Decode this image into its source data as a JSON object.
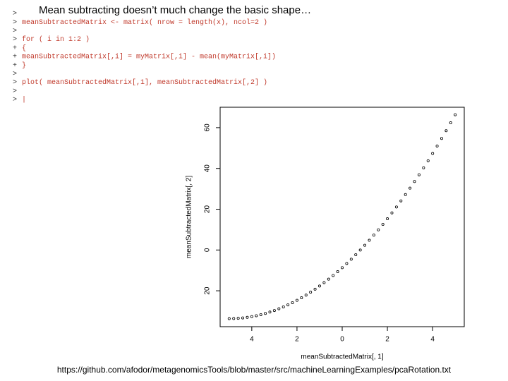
{
  "slide_title": "Mean subtracting doesn’t much change the basic shape…",
  "console": [
    {
      "prompt": ">",
      "code": ""
    },
    {
      "prompt": ">",
      "code": "meanSubtractedMatrix <- matrix( nrow = length(x), ncol=2 )"
    },
    {
      "prompt": ">",
      "code": ""
    },
    {
      "prompt": ">",
      "code": "for ( i in 1:2 )"
    },
    {
      "prompt": "+",
      "code": "{"
    },
    {
      "prompt": "+",
      "code": "meanSubtractedMatrix[,i] = myMatrix[,i] - mean(myMatrix[,i])"
    },
    {
      "prompt": "+",
      "code": "}"
    },
    {
      "prompt": ">",
      "code": ""
    },
    {
      "prompt": ">",
      "code": "plot( meanSubtractedMatrix[,1], meanSubtractedMatrix[,2] )"
    },
    {
      "prompt": ">",
      "code": ""
    },
    {
      "prompt": ">",
      "code": "|"
    }
  ],
  "footer": "https://github.com/afodor/metagenomicsTools/blob/master/src/machineLearningExamples/pcaRotation.txt",
  "chart_data": {
    "type": "scatter",
    "x_label": "meanSubtractedMatrix[, 1]",
    "y_label": "meanSubtractedMatrix[, 2]",
    "color": "#000000",
    "xlim": [
      -5.4,
      5.4
    ],
    "ylim": [
      -37.6,
      70
    ],
    "xticks": [
      {
        "value": -4,
        "label": "4"
      },
      {
        "value": -2,
        "label": "2"
      },
      0,
      2,
      4
    ],
    "yticks": [
      {
        "value": -20,
        "label": "20"
      },
      0,
      20,
      40,
      60
    ],
    "x": [
      -5,
      -4.8,
      -4.6,
      -4.4,
      -4.2,
      -4,
      -3.8,
      -3.6,
      -3.4,
      -3.2,
      -3,
      -2.8,
      -2.6,
      -2.4,
      -2.2,
      -2,
      -1.8,
      -1.6,
      -1.4,
      -1.2,
      -1,
      -0.8,
      -0.6,
      -0.4,
      -0.2,
      0,
      0.2,
      0.4,
      0.6,
      0.8,
      1,
      1.2,
      1.4,
      1.6,
      1.8,
      2,
      2.2,
      2.4,
      2.6,
      2.8,
      3,
      3.2,
      3.4,
      3.6,
      3.8,
      4,
      4.2,
      4.4,
      4.6,
      4.8,
      5
    ],
    "values": [
      -33.67,
      -33.63,
      -33.51,
      -33.31,
      -33.03,
      -32.67,
      -32.23,
      -31.71,
      -31.11,
      -30.43,
      -29.67,
      -28.83,
      -27.91,
      -26.91,
      -25.83,
      -24.67,
      -23.43,
      -22.11,
      -20.71,
      -19.23,
      -17.67,
      -16.03,
      -14.31,
      -12.51,
      -10.63,
      -8.67,
      -6.63,
      -4.51,
      -2.31,
      -0.03,
      2.33,
      4.77,
      7.29,
      9.89,
      12.57,
      15.33,
      18.17,
      21.09,
      24.09,
      27.17,
      30.33,
      33.57,
      36.89,
      40.29,
      43.77,
      47.33,
      50.97,
      54.69,
      58.49,
      62.37,
      66.33
    ]
  }
}
